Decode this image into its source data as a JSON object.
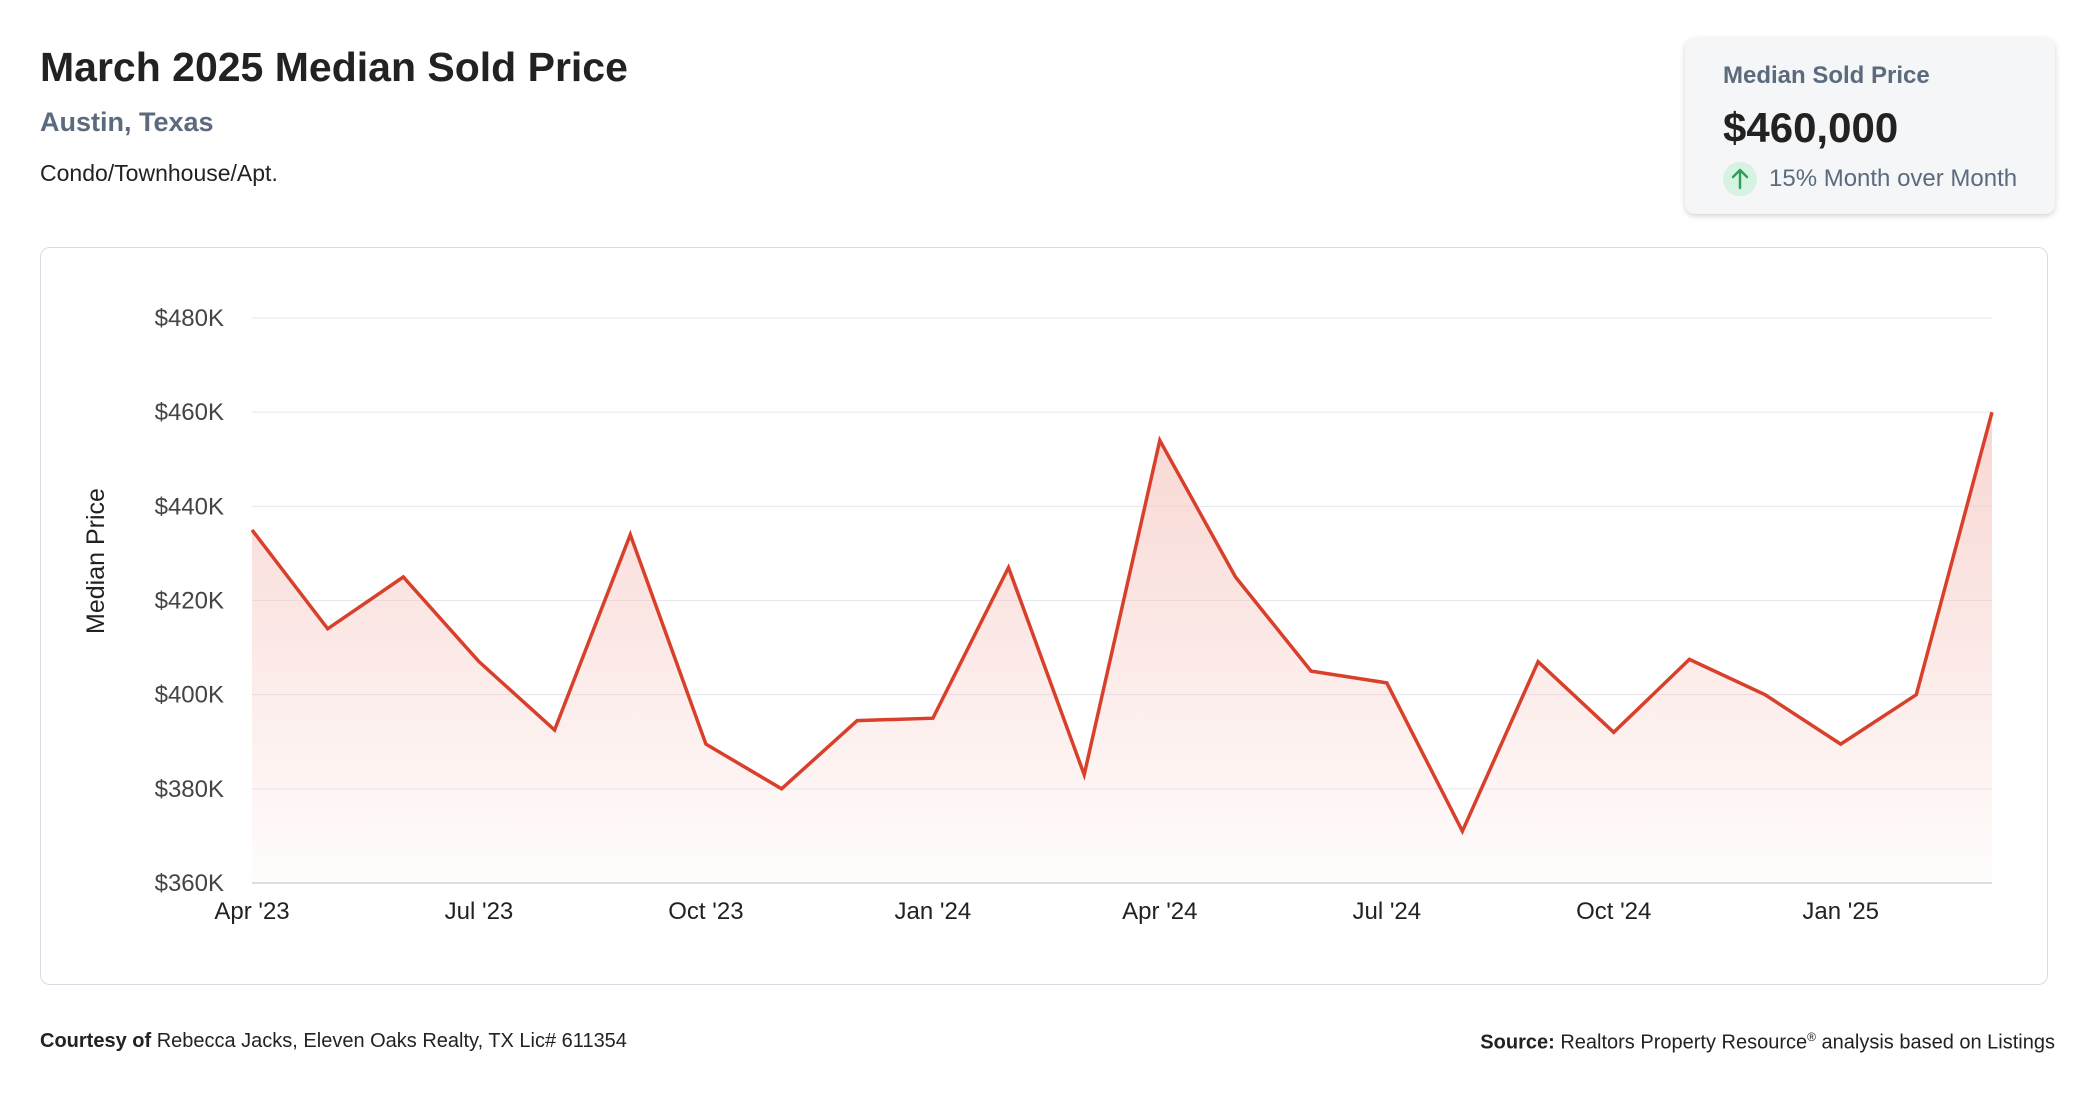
{
  "header": {
    "title": "March 2025 Median Sold Price",
    "location": "Austin, Texas",
    "property_type": "Condo/Townhouse/Apt."
  },
  "stat_card": {
    "label": "Median Sold Price",
    "value": "$460,000",
    "change_text": "15% Month over Month",
    "change_icon": "arrow-up-icon",
    "change_color": "#2e9e5b"
  },
  "chart_data": {
    "type": "area",
    "ylabel": "Median Price",
    "ylim": [
      360000,
      480000
    ],
    "yticks": [
      360000,
      380000,
      400000,
      420000,
      440000,
      460000,
      480000
    ],
    "ytick_labels": [
      "$360K",
      "$380K",
      "$400K",
      "$420K",
      "$440K",
      "$460K",
      "$480K"
    ],
    "x_tick_labels": [
      "Apr '23",
      "Jul '23",
      "Oct '23",
      "Jan '24",
      "Apr '24",
      "Jul '24",
      "Oct '24",
      "Jan '25"
    ],
    "x_tick_months": [
      "2023-04",
      "2023-07",
      "2023-10",
      "2024-01",
      "2024-04",
      "2024-07",
      "2024-10",
      "2025-01"
    ],
    "x": [
      "2023-04",
      "2023-05",
      "2023-06",
      "2023-07",
      "2023-08",
      "2023-09",
      "2023-10",
      "2023-11",
      "2023-12",
      "2024-01",
      "2024-02",
      "2024-03",
      "2024-04",
      "2024-05",
      "2024-06",
      "2024-07",
      "2024-08",
      "2024-09",
      "2024-10",
      "2024-11",
      "2024-12",
      "2025-01",
      "2025-02",
      "2025-03"
    ],
    "values": [
      435000,
      414000,
      425000,
      407000,
      392500,
      434000,
      389500,
      380000,
      394500,
      395000,
      427000,
      383000,
      454000,
      425000,
      405000,
      402500,
      371000,
      407000,
      392000,
      407500,
      400000,
      389500,
      400000,
      460000
    ],
    "line_color": "#d9402b",
    "fill_color": "#f6c9c3",
    "grid": true,
    "legend": "none"
  },
  "footer": {
    "courtesy_label": "Courtesy of",
    "courtesy_text": "Rebecca Jacks, Eleven Oaks Realty, TX Lic# 611354",
    "source_label": "Source:",
    "source_text_1": "Realtors Property Resource",
    "source_mark": "®",
    "source_text_2": "analysis based on Listings"
  }
}
